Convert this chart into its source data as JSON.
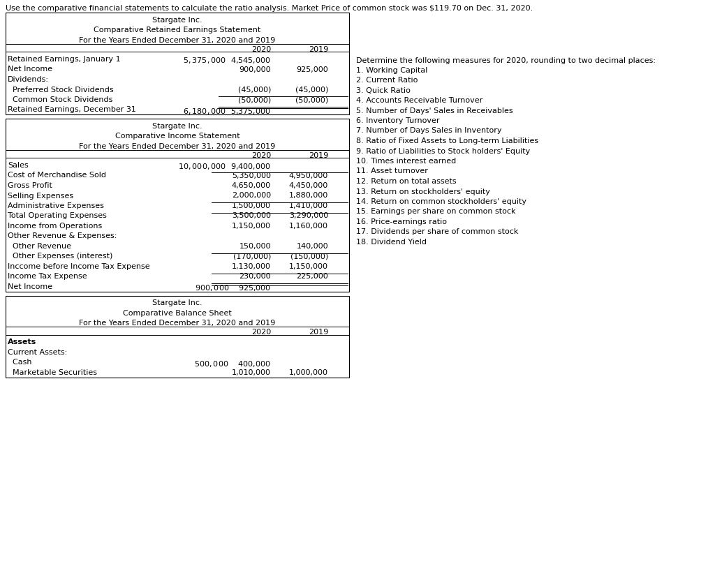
{
  "header_text": "Use the comparative financial statements to calculate the ratio analysis. Market Price of common stock was $119.70 on Dec. 31, 2020.",
  "bg_color": "#ffffff",
  "text_color": "#000000",
  "font_size": 8.0,
  "retained_earnings": {
    "title1": "Stargate Inc.",
    "title2": "Comparative Retained Earnings Statement",
    "title3": "For the Years Ended December 31, 2020 and 2019",
    "col_2020": "2020",
    "col_2019": "2019",
    "rows": [
      {
        "label": "Retained Earnings, January 1",
        "v2020": "$  5,375,000  $  4,545,000",
        "v2019": "",
        "indent": false,
        "ul_before": false,
        "double_ul": false
      },
      {
        "label": "Net Income",
        "v2020": "900,000",
        "v2019": "925,000",
        "indent": false,
        "ul_before": false,
        "double_ul": false
      },
      {
        "label": "Dividends:",
        "v2020": "",
        "v2019": "",
        "indent": false,
        "ul_before": false,
        "double_ul": false
      },
      {
        "label": "  Preferred Stock Dividends",
        "v2020": "(45,000)",
        "v2019": "(45,000)",
        "indent": false,
        "ul_before": false,
        "double_ul": false
      },
      {
        "label": "  Common Stock Dividends",
        "v2020": "(50,000)",
        "v2019": "(50,000)",
        "indent": false,
        "ul_before": false,
        "double_ul": false
      },
      {
        "label": "Retained Earnings, December 31",
        "v2020": "$  6,180,000  $  5,375,000",
        "v2019": "",
        "indent": false,
        "ul_before": true,
        "double_ul": true
      }
    ]
  },
  "income_statement": {
    "title1": "Stargate Inc.",
    "title2": "Comparative Income Statement",
    "title3": "For the Years Ended December 31, 2020 and 2019",
    "col_2020": "2020",
    "col_2019": "2019",
    "rows": [
      {
        "label": "Sales",
        "v2020": "$ 10,000,000  $  9,400,000",
        "v2019": "",
        "indent": false,
        "ul_before": false,
        "double_ul": false
      },
      {
        "label": "Cost of Merchandise Sold",
        "v2020": "5,350,000",
        "v2019": "4,950,000",
        "indent": false,
        "ul_before": false,
        "double_ul": false
      },
      {
        "label": "Gross Profit",
        "v2020": "4,650,000",
        "v2019": "4,450,000",
        "indent": false,
        "ul_before": true,
        "double_ul": false
      },
      {
        "label": "Selling Expenses",
        "v2020": "2,000,000",
        "v2019": "1,880,000",
        "indent": false,
        "ul_before": false,
        "double_ul": false
      },
      {
        "label": "Administrative Expenses",
        "v2020": "1,500,000",
        "v2019": "1,410,000",
        "indent": false,
        "ul_before": false,
        "double_ul": false
      },
      {
        "label": "Total Operating Expenses",
        "v2020": "3,500,000",
        "v2019": "3,290,000",
        "indent": false,
        "ul_before": true,
        "double_ul": false
      },
      {
        "label": "Income from Operations",
        "v2020": "1,150,000",
        "v2019": "1,160,000",
        "indent": false,
        "ul_before": true,
        "double_ul": false
      },
      {
        "label": "Other Revenue & Expenses:",
        "v2020": "",
        "v2019": "",
        "indent": false,
        "ul_before": false,
        "double_ul": false
      },
      {
        "label": "  Other Revenue",
        "v2020": "150,000",
        "v2019": "140,000",
        "indent": false,
        "ul_before": false,
        "double_ul": false
      },
      {
        "label": "  Other Expenses (interest)",
        "v2020": "(170,000)",
        "v2019": "(150,000)",
        "indent": false,
        "ul_before": false,
        "double_ul": false
      },
      {
        "label": "Inccome before Income Tax Expense",
        "v2020": "1,130,000",
        "v2019": "1,150,000",
        "indent": false,
        "ul_before": true,
        "double_ul": false
      },
      {
        "label": "Income Tax Expense",
        "v2020": "230,000",
        "v2019": "225,000",
        "indent": false,
        "ul_before": false,
        "double_ul": false
      },
      {
        "label": "Net Income",
        "v2020": "$    900,000  $    925,000",
        "v2019": "",
        "indent": false,
        "ul_before": true,
        "double_ul": true
      }
    ]
  },
  "balance_sheet": {
    "title1": "Stargate Inc.",
    "title2": "Comparative Balance Sheet",
    "title3": "For the Years Ended December 31, 2020 and 2019",
    "col_2020": "2020",
    "col_2019": "2019",
    "rows": [
      {
        "label": "Assets",
        "v2020": "",
        "v2019": "",
        "bold": true,
        "indent": false
      },
      {
        "label": "Current Assets:",
        "v2020": "",
        "v2019": "",
        "bold": false,
        "indent": false
      },
      {
        "label": "  Cash",
        "v2020": "$    500,000  $    400,000",
        "v2019": "",
        "bold": false,
        "indent": false
      },
      {
        "label": "  Marketable Securities",
        "v2020": "1,010,000",
        "v2019": "1,000,000",
        "bold": false,
        "indent": false
      }
    ]
  },
  "right_panel": {
    "header": "Determine the following measures for 2020, rounding to two decimal places:",
    "items": [
      "1. Working Capital",
      "2. Current Ratio",
      "3. Quick Ratio",
      "4. Accounts Receivable Turnover",
      "5. Number of Days' Sales in Receivables",
      "6. Inventory Turnover",
      "7. Number of Days Sales in Inventory",
      "8. Ratio of Fixed Assets to Long-term Liabilities",
      "9. Ratio of Liabilities to Stock holders' Equity",
      "10. Times interest earned",
      "11. Asset turnover",
      "12. Return on total assets",
      "13. Return on stockholders' equity",
      "14. Return on common stockholders' equity",
      "15. Earnings per share on common stock",
      "16. Price-earnings ratio",
      "17. Dividends per share of common stock",
      "18. Dividend Yield"
    ]
  }
}
